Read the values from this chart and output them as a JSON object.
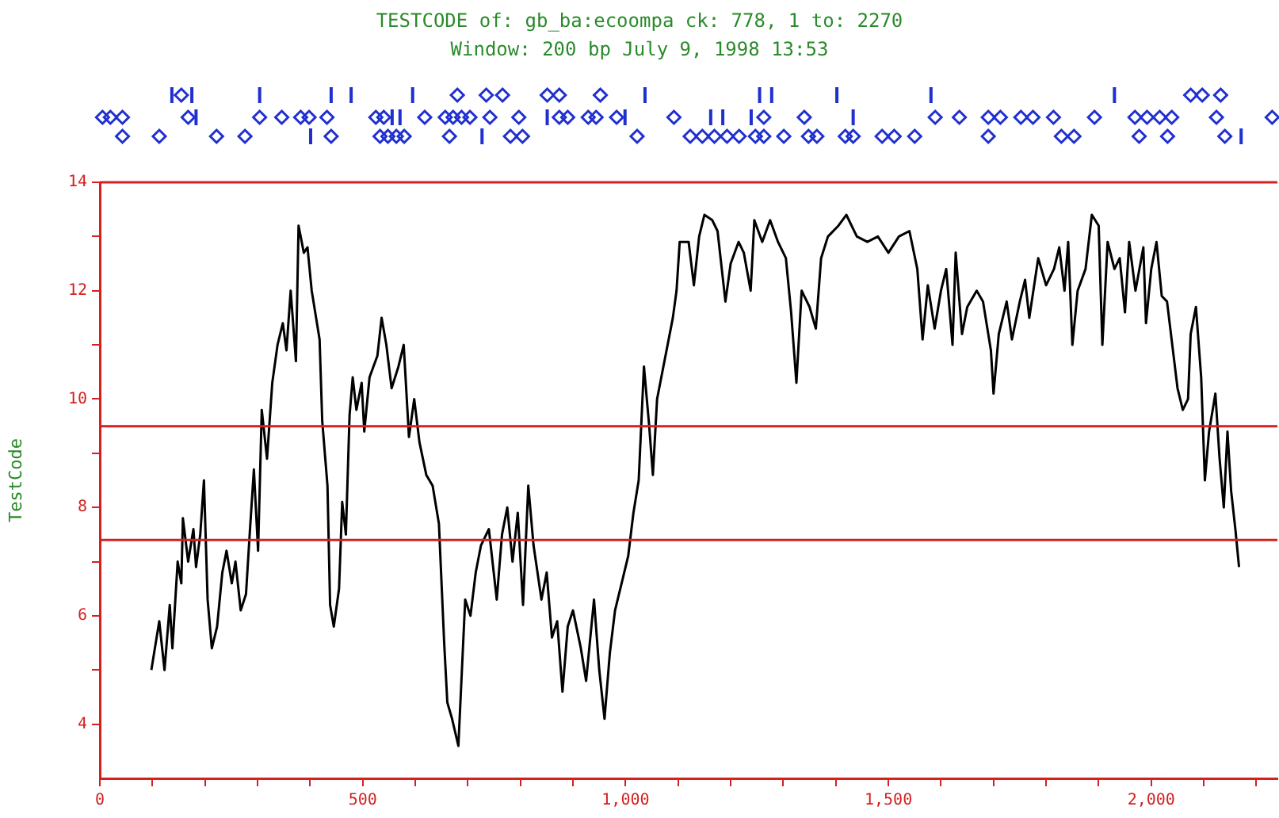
{
  "chart_data": {
    "type": "line",
    "title": "TESTCODE of: gb_ba:ecoompa ck: 778, 1 to: 2270",
    "subtitle": "Window: 200 bp  July 9, 1998 13:53",
    "ylabel": "TestCode",
    "xlim": [
      0,
      2240
    ],
    "ylim": [
      3,
      14
    ],
    "grid": false,
    "legend": false,
    "marker": "none",
    "line_style": "solid",
    "xticks": [
      0,
      {
        "value": 100,
        "label": null
      },
      {
        "value": 200,
        "label": null
      },
      {
        "value": 300,
        "label": null
      },
      {
        "value": 400,
        "label": null
      },
      {
        "value": 500,
        "label": "500"
      },
      {
        "value": 600,
        "label": null
      },
      {
        "value": 700,
        "label": null
      },
      {
        "value": 800,
        "label": null
      },
      {
        "value": 900,
        "label": null
      },
      {
        "value": 1000,
        "label": "1,000"
      },
      {
        "value": 1100,
        "label": null
      },
      {
        "value": 1200,
        "label": null
      },
      {
        "value": 1300,
        "label": null
      },
      {
        "value": 1400,
        "label": null
      },
      {
        "value": 1500,
        "label": "1,500"
      },
      {
        "value": 1600,
        "label": null
      },
      {
        "value": 1700,
        "label": null
      },
      {
        "value": 1800,
        "label": null
      },
      {
        "value": 1900,
        "label": null
      },
      {
        "value": 2000,
        "label": "2,000"
      },
      {
        "value": 2100,
        "label": null
      },
      {
        "value": 2200,
        "label": null
      }
    ],
    "yticks": [
      4,
      {
        "value": 5,
        "label": null
      },
      6,
      {
        "value": 7,
        "label": null
      },
      8,
      {
        "value": 9,
        "label": null
      },
      10,
      {
        "value": 11,
        "label": null
      },
      12,
      {
        "value": 13,
        "label": null
      },
      14
    ],
    "ref_lines": [
      {
        "axis": "y",
        "value": 9.5,
        "color": "#d42020"
      },
      {
        "axis": "y",
        "value": 7.4,
        "color": "#d42020"
      }
    ],
    "series": [
      {
        "color": "#000000",
        "x": [
          98,
          113,
          123,
          133,
          138,
          148,
          155,
          158,
          168,
          178,
          183,
          191,
          198,
          205,
          213,
          223,
          233,
          241,
          251,
          258,
          268,
          278,
          285,
          293,
          301,
          308,
          318,
          328,
          338,
          348,
          355,
          363,
          373,
          378,
          388,
          395,
          403,
          418,
          423,
          433,
          438,
          445,
          455,
          461,
          468,
          475,
          481,
          488,
          498,
          503,
          513,
          528,
          536,
          545,
          555,
          568,
          578,
          588,
          598,
          608,
          621,
          633,
          645,
          655,
          661,
          670,
          682,
          695,
          705,
          715,
          725,
          740,
          755,
          765,
          775,
          785,
          795,
          805,
          815,
          825,
          840,
          850,
          860,
          870,
          880,
          890,
          900,
          915,
          925,
          940,
          950,
          960,
          970,
          980,
          995,
          1005,
          1015,
          1025,
          1035,
          1045,
          1052,
          1060,
          1070,
          1080,
          1090,
          1097,
          1103,
          1120,
          1130,
          1140,
          1150,
          1165,
          1175,
          1190,
          1200,
          1215,
          1225,
          1238,
          1245,
          1260,
          1275,
          1290,
          1305,
          1315,
          1325,
          1335,
          1350,
          1362,
          1372,
          1385,
          1405,
          1420,
          1440,
          1460,
          1480,
          1500,
          1520,
          1540,
          1555,
          1565,
          1575,
          1588,
          1600,
          1610,
          1622,
          1628,
          1640,
          1650,
          1668,
          1680,
          1695,
          1700,
          1710,
          1725,
          1735,
          1750,
          1760,
          1768,
          1785,
          1800,
          1815,
          1825,
          1835,
          1842,
          1850,
          1860,
          1875,
          1887,
          1900,
          1907,
          1917,
          1930,
          1940,
          1950,
          1958,
          1970,
          1985,
          1990,
          2000,
          2010,
          2020,
          2030,
          2040,
          2050,
          2060,
          2070,
          2075,
          2085,
          2095,
          2102,
          2110,
          2122,
          2130,
          2138,
          2145,
          2152,
          2160,
          2167
        ],
        "values": [
          5.0,
          5.9,
          5.0,
          6.2,
          5.4,
          7.0,
          6.6,
          7.8,
          7.0,
          7.6,
          6.9,
          7.5,
          8.5,
          6.3,
          5.4,
          5.8,
          6.8,
          7.2,
          6.6,
          7.0,
          6.1,
          6.4,
          7.5,
          8.7,
          7.2,
          9.8,
          8.9,
          10.3,
          11.0,
          11.4,
          10.9,
          12.0,
          10.7,
          13.2,
          12.7,
          12.8,
          12.0,
          11.1,
          9.6,
          8.4,
          6.2,
          5.8,
          6.5,
          8.1,
          7.5,
          9.7,
          10.4,
          9.8,
          10.3,
          9.4,
          10.4,
          10.8,
          11.5,
          11.0,
          10.2,
          10.6,
          11.0,
          9.3,
          10.0,
          9.2,
          8.6,
          8.4,
          7.7,
          5.5,
          4.4,
          4.1,
          3.6,
          6.3,
          6.0,
          6.8,
          7.3,
          7.6,
          6.3,
          7.5,
          8.0,
          7.0,
          7.9,
          6.2,
          8.4,
          7.3,
          6.3,
          6.8,
          5.6,
          5.9,
          4.6,
          5.8,
          6.1,
          5.4,
          4.8,
          6.3,
          5.0,
          4.1,
          5.3,
          6.1,
          6.7,
          7.1,
          7.9,
          8.5,
          10.6,
          9.5,
          8.6,
          10.0,
          10.5,
          11.0,
          11.5,
          12.0,
          12.9,
          12.9,
          12.1,
          13.0,
          13.4,
          13.3,
          13.1,
          11.8,
          12.5,
          12.9,
          12.7,
          12.0,
          13.3,
          12.9,
          13.3,
          12.9,
          12.6,
          11.6,
          10.3,
          12.0,
          11.7,
          11.3,
          12.6,
          13.0,
          13.2,
          13.4,
          13.0,
          12.9,
          13.0,
          12.7,
          13.0,
          13.1,
          12.4,
          11.1,
          12.1,
          11.3,
          12.0,
          12.4,
          11.0,
          12.7,
          11.2,
          11.7,
          12.0,
          11.8,
          10.9,
          10.1,
          11.2,
          11.8,
          11.1,
          11.8,
          12.2,
          11.5,
          12.6,
          12.1,
          12.4,
          12.8,
          12.0,
          12.9,
          11.0,
          12.0,
          12.4,
          13.4,
          13.2,
          11.0,
          12.9,
          12.4,
          12.6,
          11.6,
          12.9,
          12.0,
          12.8,
          11.4,
          12.4,
          12.9,
          11.9,
          11.8,
          11.0,
          10.2,
          9.8,
          10.0,
          11.2,
          11.7,
          10.4,
          8.5,
          9.4,
          10.1,
          8.9,
          8.0,
          9.4,
          8.3,
          7.6,
          6.9
        ]
      }
    ]
  }
}
